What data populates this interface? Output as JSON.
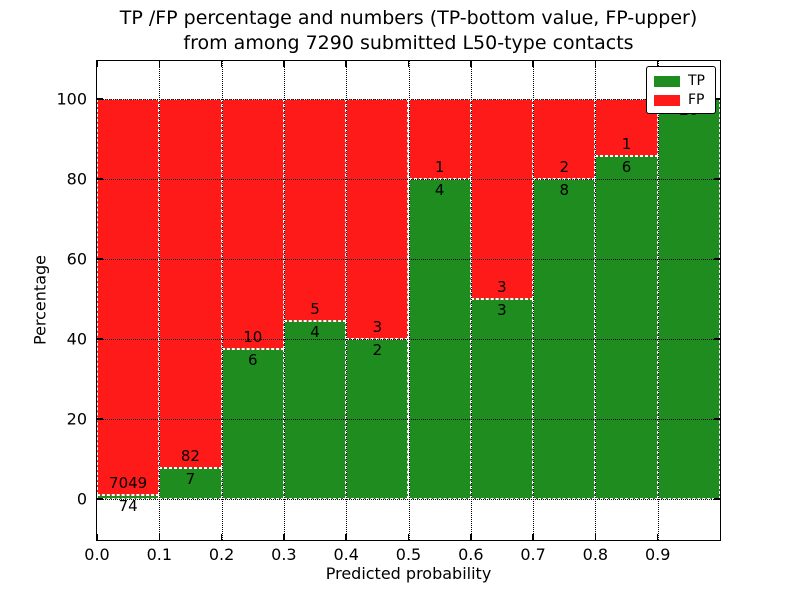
{
  "title": {
    "line1": "TP /FP percentage and numbers (TP-bottom value, FP-upper)",
    "line2": "from among 7290 submitted L50-type contacts"
  },
  "axes": {
    "xlabel": "Predicted probability",
    "ylabel": "Percentage",
    "xtick_labels": [
      "0.0",
      "0.1",
      "0.2",
      "0.3",
      "0.4",
      "0.5",
      "0.6",
      "0.7",
      "0.8",
      "0.9"
    ],
    "yticks": [
      0,
      20,
      40,
      60,
      80,
      100
    ]
  },
  "legend": {
    "items": [
      {
        "label": "TP",
        "color": "#1e8c1e"
      },
      {
        "label": "FP",
        "color": "#ff1a1a"
      }
    ]
  },
  "chart_data": {
    "type": "bar",
    "stacked": true,
    "title": "TP /FP percentage and numbers (TP-bottom value, FP-upper) from among 7290 submitted L50-type contacts",
    "xlabel": "Predicted probability",
    "ylabel": "Percentage",
    "total_submitted_contacts": 7290,
    "bins": [
      "0.0-0.1",
      "0.1-0.2",
      "0.2-0.3",
      "0.3-0.4",
      "0.4-0.5",
      "0.5-0.6",
      "0.6-0.7",
      "0.7-0.8",
      "0.8-0.9",
      "0.9-1.0"
    ],
    "series": [
      {
        "name": "TP",
        "color": "#1e8c1e",
        "counts": [
          74,
          7,
          6,
          4,
          2,
          4,
          3,
          8,
          6,
          20
        ]
      },
      {
        "name": "FP",
        "color": "#ff1a1a",
        "counts": [
          7049,
          82,
          10,
          5,
          3,
          1,
          3,
          2,
          1,
          0
        ]
      }
    ],
    "tp_percent": [
      1.04,
      7.87,
      37.5,
      44.44,
      40.0,
      80.0,
      50.0,
      80.0,
      85.71,
      100.0
    ],
    "yticks": [
      0,
      20,
      40,
      60,
      80,
      100
    ],
    "ylim": [
      -10.5,
      109.8
    ],
    "xlim": [
      0.0,
      1.0
    ],
    "grid": "dotted black, both axes, drawn over bars",
    "bar_edge": "white dashed",
    "legend_position": "upper right"
  }
}
